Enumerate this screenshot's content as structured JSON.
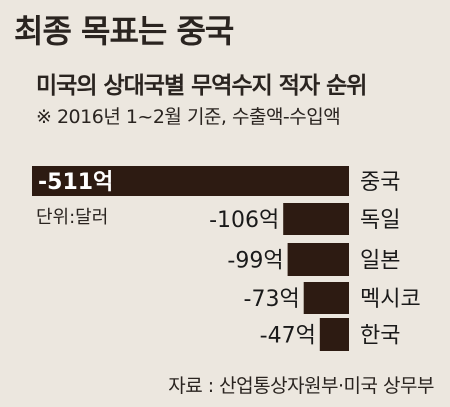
{
  "headline": "최종 목표는 중국",
  "chart_data": {
    "type": "bar",
    "orientation": "horizontal",
    "title": "미국의 상대국별 무역수지 적자 순위",
    "note": "※ 2016년 1~2월 기준, 수출액-수입액",
    "unit_label": "단위:달러",
    "categories": [
      "중국",
      "독일",
      "일본",
      "멕시코",
      "한국"
    ],
    "values": [
      -511,
      -106,
      -99,
      -73,
      -47
    ],
    "value_labels": [
      "-511억",
      "-106억",
      "-99억",
      "-73억",
      "-47억"
    ],
    "bar_color": "#2d1b12",
    "source": "자료 : 산업통상자원부·미국 상무부"
  }
}
